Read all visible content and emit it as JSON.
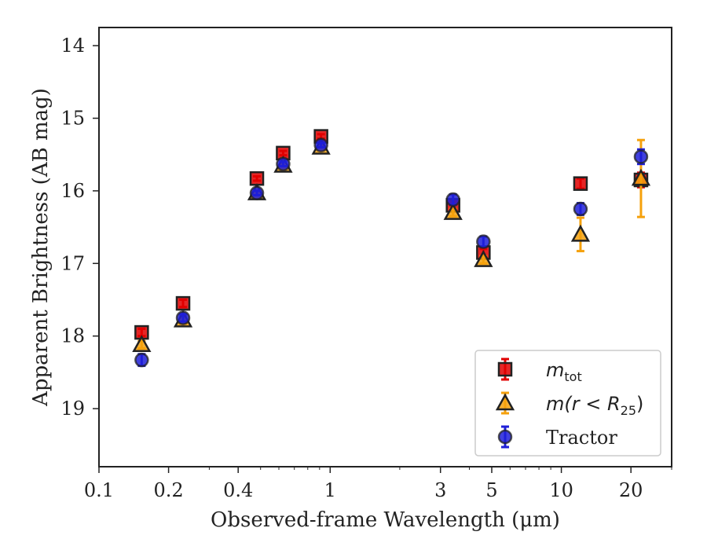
{
  "chart_data": {
    "type": "scatter",
    "xlabel": "Observed-frame Wavelength (μm)",
    "ylabel": "Apparent Brightness (AB mag)",
    "xscale": "log",
    "xlim": [
      0.1,
      30
    ],
    "ylim": [
      19.8,
      13.75
    ],
    "y_inverted": true,
    "x_ticks": [
      {
        "value": 0.1,
        "label": "0.1"
      },
      {
        "value": 0.2,
        "label": "0.2"
      },
      {
        "value": 0.4,
        "label": "0.4"
      },
      {
        "value": 1,
        "label": "1"
      },
      {
        "value": 3,
        "label": "3"
      },
      {
        "value": 5,
        "label": "5"
      },
      {
        "value": 10,
        "label": "10"
      },
      {
        "value": 20,
        "label": "20"
      }
    ],
    "y_ticks": [
      {
        "value": 14,
        "label": "14"
      },
      {
        "value": 15,
        "label": "15"
      },
      {
        "value": 16,
        "label": "16"
      },
      {
        "value": 17,
        "label": "17"
      },
      {
        "value": 18,
        "label": "18"
      },
      {
        "value": 19,
        "label": "19"
      }
    ],
    "grid": false,
    "legend_position": "lower-right",
    "series": [
      {
        "name": "m_tot",
        "marker": "square",
        "color": "#e00000",
        "ecolor": "#e00000",
        "points": [
          {
            "x": 0.153,
            "y": 17.95,
            "err": 0.05
          },
          {
            "x": 0.231,
            "y": 17.55,
            "err": 0.05
          },
          {
            "x": 0.482,
            "y": 15.83,
            "err": 0.03
          },
          {
            "x": 0.626,
            "y": 15.48,
            "err": 0.03
          },
          {
            "x": 0.913,
            "y": 15.25,
            "err": 0.03
          },
          {
            "x": 3.4,
            "y": 16.2,
            "err": 0.05
          },
          {
            "x": 4.6,
            "y": 16.85,
            "err": 0.05
          },
          {
            "x": 12.1,
            "y": 15.9,
            "err": 0.07
          },
          {
            "x": 22.1,
            "y": 15.85,
            "err": 0.1
          }
        ]
      },
      {
        "name": "m(r<R25)",
        "marker": "triangle",
        "color": "#f5a10c",
        "ecolor": "#f5a10c",
        "points": [
          {
            "x": 0.153,
            "y": 18.12,
            "err": 0.05
          },
          {
            "x": 0.231,
            "y": 17.78,
            "err": 0.05
          },
          {
            "x": 0.482,
            "y": 16.03,
            "err": 0.03
          },
          {
            "x": 0.626,
            "y": 15.65,
            "err": 0.03
          },
          {
            "x": 0.913,
            "y": 15.4,
            "err": 0.03
          },
          {
            "x": 3.4,
            "y": 16.3,
            "err": 0.05
          },
          {
            "x": 4.6,
            "y": 16.95,
            "err": 0.05
          },
          {
            "x": 12.1,
            "y": 16.6,
            "err": 0.23
          },
          {
            "x": 22.1,
            "y": 15.83,
            "err": 0.53
          }
        ]
      },
      {
        "name": "Tractor",
        "marker": "circle",
        "color": "#1f1fd8",
        "ecolor": "#1f1fd8",
        "points": [
          {
            "x": 0.153,
            "y": 18.33,
            "err": 0.08
          },
          {
            "x": 0.231,
            "y": 17.75,
            "err": 0.05
          },
          {
            "x": 0.482,
            "y": 16.03,
            "err": 0.03
          },
          {
            "x": 0.626,
            "y": 15.63,
            "err": 0.03
          },
          {
            "x": 0.913,
            "y": 15.37,
            "err": 0.03
          },
          {
            "x": 3.4,
            "y": 16.12,
            "err": 0.07
          },
          {
            "x": 4.6,
            "y": 16.7,
            "err": 0.07
          },
          {
            "x": 12.1,
            "y": 16.25,
            "err": 0.08
          },
          {
            "x": 22.1,
            "y": 15.53,
            "err": 0.1
          }
        ]
      }
    ],
    "legend": {
      "entries": [
        {
          "series": "m_tot",
          "base": "m",
          "sub": "tot",
          "math": true
        },
        {
          "series": "m(r<R25)",
          "pre": "m(r < R",
          "sub": "25",
          "post": ")",
          "math": true
        },
        {
          "series": "Tractor",
          "text": "Tractor",
          "math": false
        }
      ]
    }
  }
}
